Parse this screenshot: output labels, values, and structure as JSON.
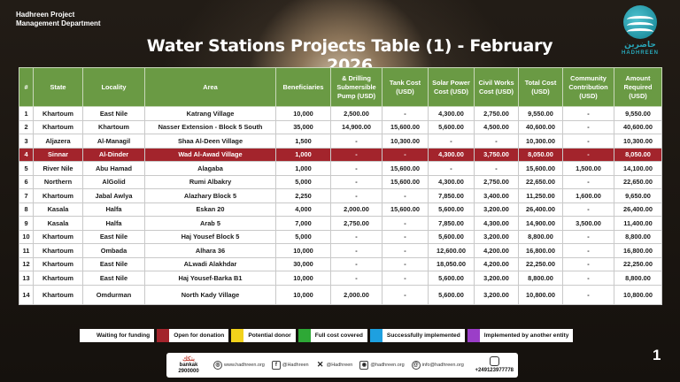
{
  "org": {
    "line1": "Hadhreen Project",
    "line2": "Management Department"
  },
  "logo": {
    "arabic": "حاضرين",
    "name": "HADHREEN"
  },
  "title": "Water Stations Projects Table (1) - February 2026",
  "table": {
    "headers": [
      "#",
      "State",
      "Locality",
      "Area",
      "Beneficiaries",
      "& Drilling Submersible Pump (USD)",
      "Tank Cost (USD)",
      "Solar Power Cost (USD)",
      "Civil Works Cost (USD)",
      "Total Cost (USD)",
      "Community Contribution (USD)",
      "Amount Required (USD)"
    ],
    "rows": [
      [
        "1",
        "Khartoum",
        "East Nile",
        "Katrang Village",
        "10,000",
        "2,500.00",
        "-",
        "4,300.00",
        "2,750.00",
        "9,550.00",
        "-",
        "9,550.00"
      ],
      [
        "2",
        "Khartoum",
        "Khartoum",
        "Nasser Extension - Block 5 South",
        "35,000",
        "14,900.00",
        "15,600.00",
        "5,600.00",
        "4,500.00",
        "40,600.00",
        "-",
        "40,600.00"
      ],
      [
        "3",
        "Aljazera",
        "Al-Managil",
        "Shaa Al-Deen Village",
        "1,500",
        "-",
        "10,300.00",
        "-",
        "-",
        "10,300.00",
        "-",
        "10,300.00"
      ],
      [
        "4",
        "Sinnar",
        "Al-Dinder",
        "Wad Al-Awad Village",
        "1,000",
        "-",
        "-",
        "4,300.00",
        "3,750.00",
        "8,050.00",
        "-",
        "8,050.00"
      ],
      [
        "5",
        "River Nile",
        "Abu Hamad",
        "Alagaba",
        "1,000",
        "-",
        "15,600.00",
        "-",
        "-",
        "15,600.00",
        "1,500.00",
        "14,100.00"
      ],
      [
        "6",
        "Northern",
        "AlGolid",
        "Rumi Albakry",
        "5,000",
        "-",
        "15,600.00",
        "4,300.00",
        "2,750.00",
        "22,650.00",
        "-",
        "22,650.00"
      ],
      [
        "7",
        "Khartoum",
        "Jabal Awlya",
        "Alazhary Block 5",
        "2,250",
        "-",
        "-",
        "7,850.00",
        "3,400.00",
        "11,250.00",
        "1,600.00",
        "9,650.00"
      ],
      [
        "8",
        "Kasala",
        "Halfa",
        "Eskan 20",
        "4,000",
        "2,000.00",
        "15,600.00",
        "5,600.00",
        "3,200.00",
        "26,400.00",
        "-",
        "26,400.00"
      ],
      [
        "9",
        "Kasala",
        "Halfa",
        "Arab 5",
        "7,000",
        "2,750.00",
        "-",
        "7,850.00",
        "4,300.00",
        "14,900.00",
        "3,500.00",
        "11,400.00"
      ],
      [
        "10",
        "Khartoum",
        "East Nile",
        "Haj Yousef Block 5",
        "5,000",
        "-",
        "-",
        "5,600.00",
        "3,200.00",
        "8,800.00",
        "-",
        "8,800.00"
      ],
      [
        "11",
        "Khartoum",
        "Ombada",
        "Alhara 36",
        "10,000",
        "-",
        "-",
        "12,600.00",
        "4,200.00",
        "16,800.00",
        "-",
        "16,800.00"
      ],
      [
        "12",
        "Khartoum",
        "East Nile",
        "ALwadi Alakhdar",
        "30,000",
        "-",
        "-",
        "18,050.00",
        "4,200.00",
        "22,250.00",
        "-",
        "22,250.00"
      ],
      [
        "13",
        "Khartoum",
        "East Nile",
        "Haj Yousef-Barka B1",
        "10,000",
        "-",
        "-",
        "5,600.00",
        "3,200.00",
        "8,800.00",
        "-",
        "8,800.00"
      ],
      [
        "14",
        "Khartoum",
        "Omdurman",
        "North Kady Village",
        "10,000",
        "2,000.00",
        "-",
        "5,600.00",
        "3,200.00",
        "10,800.00",
        "-",
        "10,800.00"
      ]
    ],
    "highlight_row": 3,
    "header_color": "#6a9a44",
    "highlight_color": "#a3242c"
  },
  "legend": [
    {
      "label": "Waiting for funding",
      "color": "#ffffff"
    },
    {
      "label": "Open for donation",
      "color": "#a3242c"
    },
    {
      "label": "Potential donor",
      "color": "#f2d21b"
    },
    {
      "label": "Full cost covered",
      "color": "#2ea836"
    },
    {
      "label": "Successfully implemented",
      "color": "#1ea0e0"
    },
    {
      "label": "Implemented by another entity",
      "color": "#9b3ec8"
    }
  ],
  "footer": {
    "bankak_label": "بنكك",
    "bankak_word": "bankak",
    "bankak_number": "2900000",
    "website": "www.hadhreen.org",
    "facebook": "@Hadhreen",
    "x": "@Hadhreen",
    "instagram": "@hadhreen.org",
    "email": "info@hadhreen.org",
    "phone": "+249123977778"
  },
  "page_number": "1"
}
